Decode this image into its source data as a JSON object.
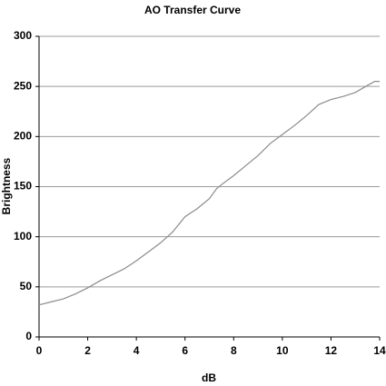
{
  "chart_data": {
    "type": "line",
    "title": "AO Transfer Curve",
    "x_label": "dB",
    "y_label": "Brightness",
    "x": [
      0,
      0.5,
      1,
      1.5,
      2,
      2.5,
      3,
      3.5,
      4,
      4.5,
      5,
      5.5,
      6,
      6.5,
      7,
      7.3,
      7.5,
      8,
      8.5,
      9,
      9.5,
      10,
      10.5,
      11,
      11.5,
      12,
      12.5,
      13,
      13.5,
      13.8,
      14
    ],
    "series": [
      {
        "name": "Brightness",
        "color": "#8c8c8c",
        "values": [
          32,
          35,
          38,
          43,
          49,
          56,
          62,
          68,
          76,
          85,
          94,
          105,
          120,
          128,
          138,
          148,
          152,
          161,
          171,
          181,
          193,
          202,
          211,
          221,
          232,
          237,
          240,
          244,
          251,
          255,
          255
        ]
      }
    ],
    "xlim": [
      0,
      14
    ],
    "xticks": [
      0,
      2,
      4,
      6,
      8,
      10,
      12,
      14
    ],
    "ylim": [
      0,
      300
    ],
    "yticks": [
      0,
      50,
      100,
      150,
      200,
      250,
      300
    ],
    "grid": true
  }
}
